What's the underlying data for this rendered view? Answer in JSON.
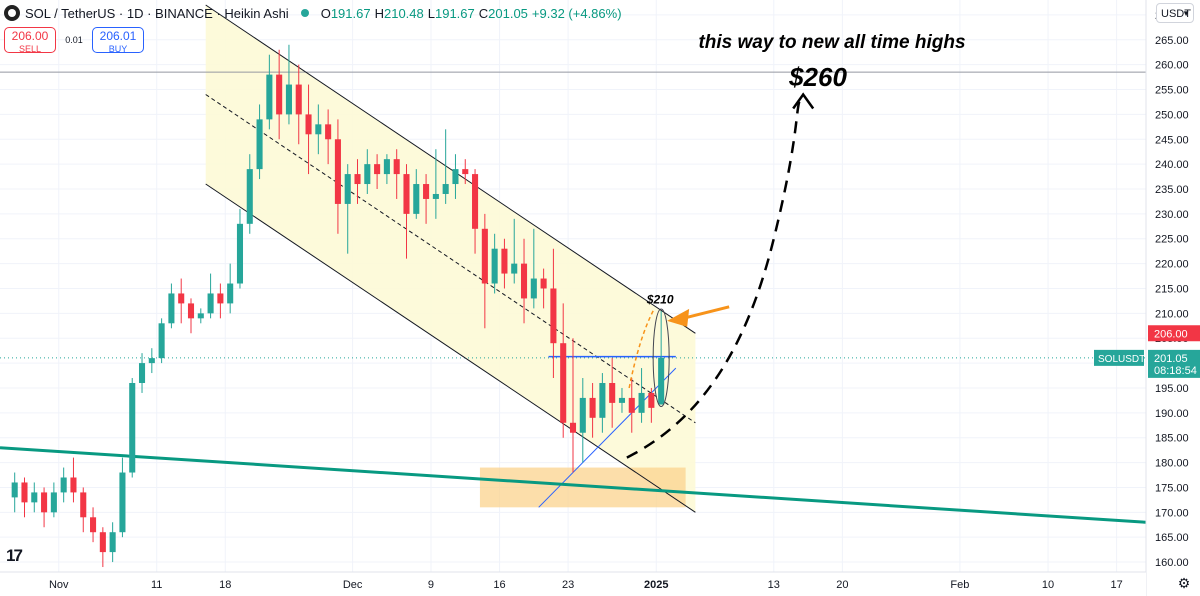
{
  "header": {
    "symbol": "SOL / TetherUS · 1D · BINANCE · Heikin Ashi",
    "o_label": "O",
    "o": "191.67",
    "h_label": "H",
    "h": "210.48",
    "l_label": "L",
    "l": "191.67",
    "c_label": "C",
    "c": "201.05",
    "change": "+9.32 (+4.86%)"
  },
  "trade": {
    "sell_price": "206.00",
    "sell_label": "SELL",
    "spread": "0.01",
    "buy_price": "206.01",
    "buy_label": "BUY"
  },
  "currency": "USDT",
  "colors": {
    "up": "#26a69a",
    "down": "#f23645",
    "channel": "#fdf9d6",
    "support": "#089981",
    "zone": "#fbd38d",
    "arrow": "#f7931a"
  },
  "chart_data": {
    "type": "candlestick",
    "style": "Heikin Ashi",
    "y_ticks": [
      160,
      165,
      170,
      175,
      180,
      185,
      190,
      195,
      200,
      205,
      210,
      215,
      220,
      225,
      230,
      235,
      240,
      245,
      250,
      255,
      260,
      265,
      270
    ],
    "x_ticks": [
      {
        "label": "Nov",
        "date": "2024-11-01"
      },
      {
        "label": "11",
        "date": "2024-11-11"
      },
      {
        "label": "18",
        "date": "2024-11-18"
      },
      {
        "label": "Dec",
        "date": "2024-12-01"
      },
      {
        "label": "9",
        "date": "2024-12-09"
      },
      {
        "label": "16",
        "date": "2024-12-16"
      },
      {
        "label": "23",
        "date": "2024-12-23"
      },
      {
        "label": "2025",
        "date": "2025-01-01"
      },
      {
        "label": "13",
        "date": "2025-01-13"
      },
      {
        "label": "20",
        "date": "2025-01-20"
      },
      {
        "label": "Feb",
        "date": "2025-02-01"
      },
      {
        "label": "10",
        "date": "2025-02-10"
      },
      {
        "label": "17",
        "date": "2025-02-17"
      }
    ],
    "ylim": [
      158,
      273
    ],
    "xlim": [
      "2024-10-26",
      "2025-02-20"
    ],
    "candles": [
      [
        "2024-10-27",
        173,
        176,
        170,
        178
      ],
      [
        "2024-10-28",
        176,
        172,
        169,
        177
      ],
      [
        "2024-10-29",
        172,
        174,
        170,
        176
      ],
      [
        "2024-10-30",
        174,
        170,
        167,
        175
      ],
      [
        "2024-10-31",
        170,
        174,
        169,
        176
      ],
      [
        "2024-11-01",
        174,
        177,
        172,
        179
      ],
      [
        "2024-11-02",
        177,
        174,
        172,
        181
      ],
      [
        "2024-11-03",
        174,
        169,
        166,
        175
      ],
      [
        "2024-11-04",
        169,
        166,
        164,
        171
      ],
      [
        "2024-11-05",
        166,
        162,
        159,
        167
      ],
      [
        "2024-11-06",
        162,
        166,
        160,
        168
      ],
      [
        "2024-11-07",
        166,
        178,
        165,
        181
      ],
      [
        "2024-11-08",
        178,
        196,
        177,
        197
      ],
      [
        "2024-11-09",
        196,
        200,
        194,
        202
      ],
      [
        "2024-11-10",
        200,
        201,
        198,
        203
      ],
      [
        "2024-11-11",
        201,
        208,
        200,
        209
      ],
      [
        "2024-11-12",
        208,
        214,
        207,
        216
      ],
      [
        "2024-11-13",
        214,
        212,
        208,
        217
      ],
      [
        "2024-11-14",
        212,
        209,
        206,
        213
      ],
      [
        "2024-11-15",
        209,
        210,
        208,
        211
      ],
      [
        "2024-11-16",
        210,
        214,
        209,
        218
      ],
      [
        "2024-11-17",
        214,
        212,
        209,
        216
      ],
      [
        "2024-11-18",
        212,
        216,
        210,
        220
      ],
      [
        "2024-11-19",
        216,
        228,
        215,
        231
      ],
      [
        "2024-11-20",
        228,
        239,
        226,
        242
      ],
      [
        "2024-11-21",
        239,
        249,
        237,
        252
      ],
      [
        "2024-11-22",
        249,
        258,
        247,
        262
      ],
      [
        "2024-11-23",
        258,
        250,
        245,
        263
      ],
      [
        "2024-11-24",
        250,
        256,
        248,
        264
      ],
      [
        "2024-11-25",
        256,
        250,
        244,
        260
      ],
      [
        "2024-11-26",
        250,
        246,
        238,
        256
      ],
      [
        "2024-11-27",
        246,
        248,
        242,
        252
      ],
      [
        "2024-11-28",
        248,
        245,
        240,
        251
      ],
      [
        "2024-11-29",
        245,
        232,
        226,
        249
      ],
      [
        "2024-11-30",
        232,
        238,
        222,
        240
      ],
      [
        "2024-12-01",
        238,
        236,
        232,
        241
      ],
      [
        "2024-12-02",
        236,
        240,
        234,
        243
      ],
      [
        "2024-12-03",
        240,
        238,
        235,
        242
      ],
      [
        "2024-12-04",
        238,
        241,
        236,
        242
      ],
      [
        "2024-12-05",
        241,
        238,
        233,
        243
      ],
      [
        "2024-12-06",
        238,
        230,
        221,
        240
      ],
      [
        "2024-12-07",
        230,
        236,
        229,
        239
      ],
      [
        "2024-12-08",
        236,
        233,
        228,
        238
      ],
      [
        "2024-12-09",
        233,
        234,
        229,
        243
      ],
      [
        "2024-12-10",
        234,
        236,
        232,
        247
      ],
      [
        "2024-12-11",
        236,
        239,
        233,
        242
      ],
      [
        "2024-12-12",
        239,
        238,
        236,
        241
      ],
      [
        "2024-12-13",
        238,
        227,
        222,
        239
      ],
      [
        "2024-12-14",
        227,
        216,
        207,
        230
      ],
      [
        "2024-12-15",
        216,
        223,
        214,
        226
      ],
      [
        "2024-12-16",
        223,
        218,
        215,
        225
      ],
      [
        "2024-12-17",
        218,
        220,
        216,
        229
      ],
      [
        "2024-12-18",
        220,
        213,
        208,
        225
      ],
      [
        "2024-12-19",
        213,
        217,
        211,
        227
      ],
      [
        "2024-12-20",
        217,
        215,
        211,
        219
      ],
      [
        "2024-12-21",
        215,
        204,
        197,
        223
      ],
      [
        "2024-12-22",
        204,
        188,
        185,
        212
      ],
      [
        "2024-12-23",
        188,
        186,
        178,
        205
      ],
      [
        "2024-12-24",
        186,
        193,
        180,
        197
      ],
      [
        "2024-12-25",
        193,
        189,
        185,
        196
      ],
      [
        "2024-12-26",
        189,
        196,
        186,
        198
      ],
      [
        "2024-12-27",
        196,
        192,
        187,
        201
      ],
      [
        "2024-12-28",
        192,
        193,
        190,
        195
      ],
      [
        "2024-12-29",
        193,
        190,
        186,
        197
      ],
      [
        "2024-12-30",
        190,
        194,
        188,
        199
      ],
      [
        "2024-12-31",
        194,
        191,
        188,
        195
      ],
      [
        "2025-01-01",
        191.67,
        201.05,
        191.67,
        210.48
      ]
    ],
    "annotations": [
      {
        "type": "text",
        "text": "this way to new all time highs"
      },
      {
        "type": "text",
        "text": "$260"
      },
      {
        "type": "text",
        "text": "$210"
      },
      {
        "type": "horizontal_line",
        "price": 258.5
      },
      {
        "type": "horizontal_line",
        "price": 201.05
      },
      {
        "type": "price_label",
        "text": "206.00",
        "price": 206
      },
      {
        "type": "price_label",
        "text": "SOLUSDT"
      },
      {
        "type": "price_label",
        "text": "201.05",
        "price": 201.05
      },
      {
        "type": "price_label",
        "text": "08:18:54"
      }
    ],
    "channel": {
      "upper": [
        [
          "2024-11-16",
          272
        ],
        [
          "2025-01-05",
          206
        ]
      ],
      "middle": [
        [
          "2024-11-16",
          254
        ],
        [
          "2025-01-05",
          188
        ]
      ],
      "lower": [
        [
          "2024-11-16",
          236
        ],
        [
          "2025-01-05",
          170
        ]
      ]
    },
    "support_line": [
      [
        "2024-10-26",
        183
      ],
      [
        "2025-02-20",
        168
      ]
    ],
    "support_zone": {
      "from": "2024-12-14",
      "to": "2025-01-04",
      "low": 171,
      "high": 179
    },
    "resistance_segment": {
      "from": "2024-12-21",
      "to": "2025-01-03",
      "price": 201.3
    },
    "rising_trend": [
      [
        "2024-12-20",
        171
      ],
      [
        "2025-01-03",
        199
      ]
    ],
    "projection": [
      [
        "2024-12-29",
        181
      ],
      [
        "2025-01-05",
        188
      ],
      [
        "2025-01-10",
        201
      ],
      [
        "2025-01-13",
        225
      ],
      [
        "2025-01-15",
        252
      ],
      [
        "2025-01-16",
        254
      ],
      [
        "2025-01-17",
        252
      ]
    ]
  }
}
